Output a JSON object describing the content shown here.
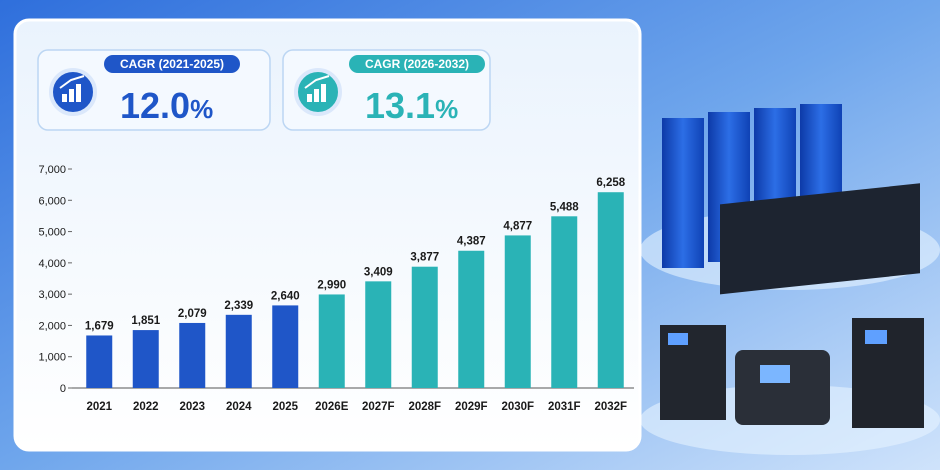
{
  "cards": [
    {
      "label": "CAGR (2021-2025)",
      "value": "12.0",
      "unit": "%",
      "color": "#1f56c8"
    },
    {
      "label": "CAGR (2026-2032)",
      "value": "13.1",
      "unit": "%",
      "color": "#2ab3b6"
    }
  ],
  "chart_data": {
    "type": "bar",
    "categories": [
      "2021",
      "2022",
      "2023",
      "2024",
      "2025",
      "2026E",
      "2027F",
      "2028F",
      "2029F",
      "2030F",
      "2031F",
      "2032F"
    ],
    "values": [
      1679,
      1851,
      2079,
      2339,
      2640,
      2990,
      3409,
      3877,
      4387,
      4877,
      5488,
      6258
    ],
    "value_labels": [
      "1,679",
      "1,851",
      "2,079",
      "2,339",
      "2,640",
      "2,990",
      "3,409",
      "3,877",
      "4,387",
      "4,877",
      "5,488",
      "6,258"
    ],
    "colors": [
      "#1f56c8",
      "#1f56c8",
      "#1f56c8",
      "#1f56c8",
      "#1f56c8",
      "#2ab3b6",
      "#2ab3b6",
      "#2ab3b6",
      "#2ab3b6",
      "#2ab3b6",
      "#2ab3b6",
      "#2ab3b6"
    ],
    "ylim": [
      0,
      7000
    ],
    "yticks": [
      0,
      {
        "value": 1000,
        "label": "1,000"
      },
      {
        "value": 2000,
        "label": "2,000"
      },
      {
        "value": 3000,
        "label": "3,000"
      },
      {
        "value": 4000,
        "label": "4,000"
      },
      {
        "value": 5000,
        "label": "5,000"
      },
      {
        "value": 6000,
        "label": "6,000"
      },
      {
        "value": 7000,
        "label": "7,000"
      }
    ],
    "grid": false
  }
}
